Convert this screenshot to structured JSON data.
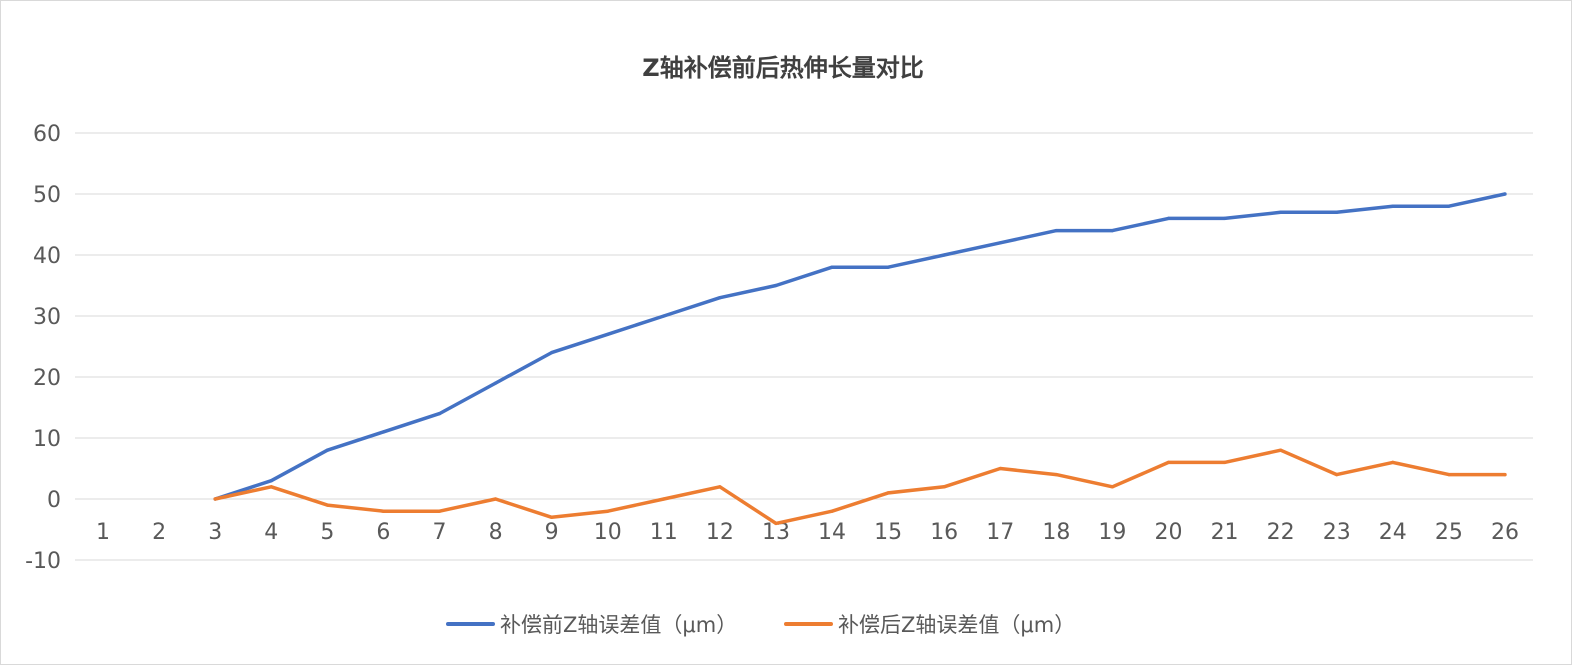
{
  "chart_data": {
    "type": "line",
    "title": "Z轴补偿前后热伸长量对比",
    "xlabel": "",
    "ylabel": "",
    "categories": [
      "1",
      "2",
      "3",
      "4",
      "5",
      "6",
      "7",
      "8",
      "9",
      "10",
      "11",
      "12",
      "13",
      "14",
      "15",
      "16",
      "17",
      "18",
      "19",
      "20",
      "21",
      "22",
      "23",
      "24",
      "25",
      "26"
    ],
    "ylim": [
      -10,
      60
    ],
    "yticks": [
      "-10",
      "0",
      "10",
      "20",
      "30",
      "40",
      "50",
      "60"
    ],
    "grid": true,
    "legend_position": "bottom",
    "series": [
      {
        "name": "补偿前Z轴误差值（μm）",
        "color": "#4472C4",
        "values": [
          null,
          null,
          0,
          3,
          8,
          11,
          14,
          19,
          24,
          27,
          30,
          33,
          35,
          38,
          38,
          40,
          42,
          44,
          44,
          46,
          46,
          47,
          47,
          48,
          48,
          50
        ]
      },
      {
        "name": "补偿后Z轴误差值（μm）",
        "color": "#ED7D31",
        "values": [
          null,
          null,
          0,
          2,
          -1,
          -2,
          -2,
          0,
          -3,
          -2,
          0,
          2,
          -4,
          -2,
          1,
          2,
          5,
          4,
          2,
          6,
          6,
          8,
          4,
          6,
          4,
          4
        ]
      }
    ]
  }
}
